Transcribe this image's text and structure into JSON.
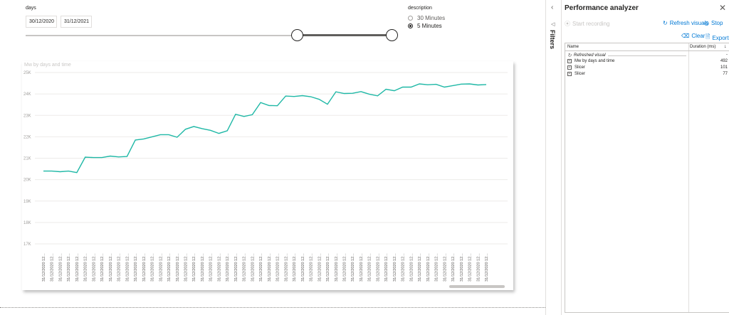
{
  "slicer_days": {
    "title": "days",
    "start_date": "30/12/2020",
    "end_date": "31/12/2021"
  },
  "slicer_description": {
    "title": "description",
    "options": [
      {
        "label": "30 Minutes",
        "selected": false
      },
      {
        "label": "5 Minutes",
        "selected": true
      }
    ]
  },
  "chart": {
    "title": "Mw by days and time"
  },
  "chart_data": {
    "type": "line",
    "title": "Mw by days and time",
    "xlabel": "",
    "ylabel": "",
    "ylim": [
      17000,
      25000
    ],
    "yticks": [
      "25K",
      "24K",
      "23K",
      "22K",
      "21K",
      "20K",
      "19K",
      "18K",
      "17K"
    ],
    "ytick_values": [
      25000,
      24000,
      23000,
      22000,
      21000,
      20000,
      19000,
      18000,
      17000
    ],
    "x_tick_label": "31/12/2020 12...",
    "grid": true,
    "line_color": "#1fb8a6",
    "values": [
      20400,
      20400,
      20370,
      20400,
      20330,
      21050,
      21030,
      21030,
      21100,
      21060,
      21080,
      21850,
      21900,
      22000,
      22100,
      22100,
      21980,
      22350,
      22480,
      22380,
      22300,
      22160,
      22280,
      23050,
      22950,
      23030,
      23600,
      23460,
      23450,
      23900,
      23880,
      23920,
      23870,
      23750,
      23520,
      24100,
      24020,
      24030,
      24110,
      23990,
      23910,
      24220,
      24150,
      24320,
      24320,
      24470,
      24430,
      24450,
      24320,
      24390,
      24460,
      24470,
      24420,
      24440
    ]
  },
  "filters": {
    "label": "Filters"
  },
  "perf": {
    "title": "Performance analyzer",
    "start_recording": "Start recording",
    "refresh_visuals": "Refresh visuals",
    "stop": "Stop",
    "clear": "Clear",
    "export": "Export",
    "col_name": "Name",
    "col_duration": "Duration (ms)",
    "rows": [
      {
        "name": "Refreshed visual",
        "duration": "-"
      },
      {
        "name": "Mw by days and time",
        "duration": "492"
      },
      {
        "name": "Slicer",
        "duration": "101"
      },
      {
        "name": "Slicer",
        "duration": "77"
      }
    ]
  },
  "colors": {
    "accent": "#0078d4",
    "line": "#1fb8a6"
  }
}
